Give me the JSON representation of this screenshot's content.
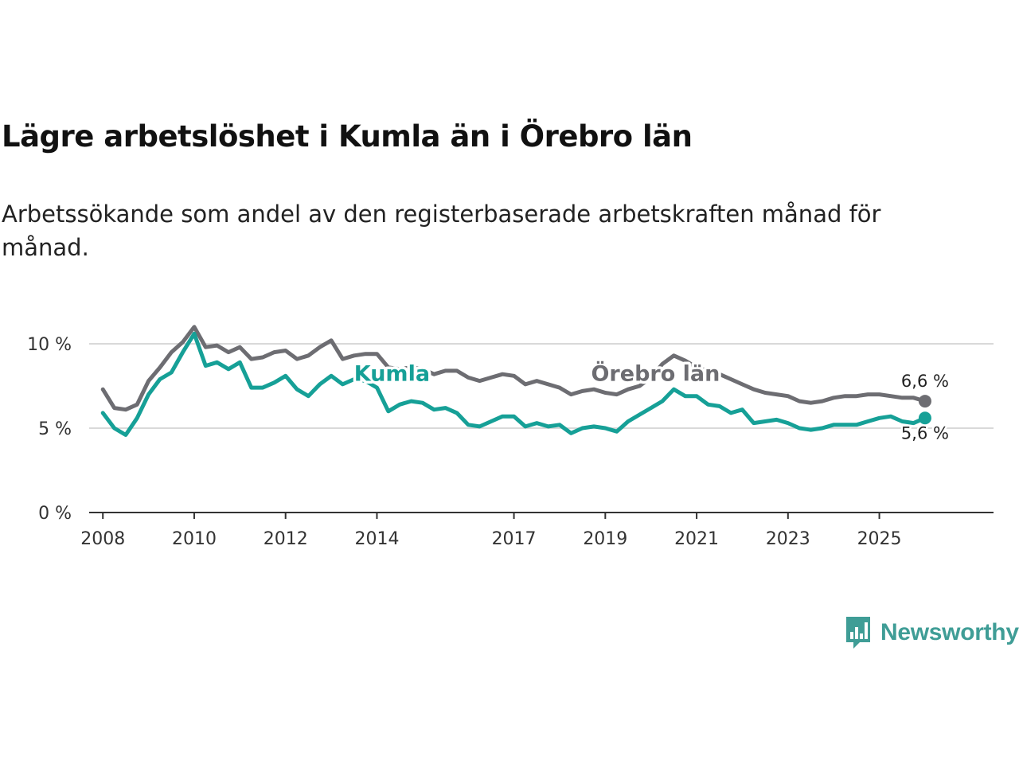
{
  "header": {
    "title": "Lägre arbetslöshet i Kumla än i Örebro län",
    "subtitle": "Arbetssökande som andel av den registerbaserade arbetskraften månad för månad."
  },
  "brand": {
    "name": "Newsworthy",
    "color": "#3f9d96"
  },
  "chart_data": {
    "type": "line",
    "title": "Lägre arbetslöshet i Kumla än i Örebro län",
    "subtitle": "Arbetssökande som andel av den registerbaserade arbetskraften månad för månad.",
    "xlabel": "",
    "ylabel": "",
    "xlim": [
      2007.7,
      2027.5
    ],
    "ylim": [
      0,
      10
    ],
    "grid": true,
    "x_ticks": [
      2008,
      2010,
      2012,
      2014,
      2017,
      2019,
      2021,
      2023,
      2025
    ],
    "y_ticks": [
      0,
      5,
      10
    ],
    "y_tick_labels": [
      "0 %",
      "5 %",
      "10 %"
    ],
    "x": [
      2008.0,
      2008.25,
      2008.5,
      2008.75,
      2009.0,
      2009.25,
      2009.5,
      2009.75,
      2010.0,
      2010.25,
      2010.5,
      2010.75,
      2011.0,
      2011.25,
      2011.5,
      2011.75,
      2012.0,
      2012.25,
      2012.5,
      2012.75,
      2013.0,
      2013.25,
      2013.5,
      2013.75,
      2014.0,
      2014.25,
      2014.5,
      2014.75,
      2015.0,
      2015.25,
      2015.5,
      2015.75,
      2016.0,
      2016.25,
      2016.5,
      2016.75,
      2017.0,
      2017.25,
      2017.5,
      2017.75,
      2018.0,
      2018.25,
      2018.5,
      2018.75,
      2019.0,
      2019.25,
      2019.5,
      2019.75,
      2020.0,
      2020.25,
      2020.5,
      2020.75,
      2021.0,
      2021.25,
      2021.5,
      2021.75,
      2022.0,
      2022.25,
      2022.5,
      2022.75,
      2023.0,
      2023.25,
      2023.5,
      2023.75,
      2024.0,
      2024.25,
      2024.5,
      2024.75,
      2025.0,
      2025.25,
      2025.5,
      2025.75,
      2026.0
    ],
    "series": [
      {
        "name": "Örebro län",
        "color": "#6d6d72",
        "end_label": "6,6 %",
        "values": [
          7.3,
          6.2,
          6.1,
          6.4,
          7.8,
          8.6,
          9.5,
          10.1,
          11.0,
          9.8,
          9.9,
          9.5,
          9.8,
          9.1,
          9.2,
          9.5,
          9.6,
          9.1,
          9.3,
          9.8,
          10.2,
          9.1,
          9.3,
          9.4,
          9.4,
          8.6,
          8.5,
          8.6,
          8.5,
          8.2,
          8.4,
          8.4,
          8.0,
          7.8,
          8.0,
          8.2,
          8.1,
          7.6,
          7.8,
          7.6,
          7.4,
          7.0,
          7.2,
          7.3,
          7.1,
          7.0,
          7.3,
          7.5,
          8.0,
          8.8,
          9.3,
          9.0,
          8.6,
          8.4,
          8.2,
          7.9,
          7.6,
          7.3,
          7.1,
          7.0,
          6.9,
          6.6,
          6.5,
          6.6,
          6.8,
          6.9,
          6.9,
          7.0,
          7.0,
          6.9,
          6.8,
          6.8,
          6.6
        ]
      },
      {
        "name": "Kumla",
        "color": "#16a097",
        "end_label": "5,6 %",
        "values": [
          5.9,
          5.0,
          4.6,
          5.6,
          7.0,
          7.9,
          8.3,
          9.5,
          10.6,
          8.7,
          8.9,
          8.5,
          8.9,
          7.4,
          7.4,
          7.7,
          8.1,
          7.3,
          6.9,
          7.6,
          8.1,
          7.6,
          7.9,
          7.8,
          7.4,
          6.0,
          6.4,
          6.6,
          6.5,
          6.1,
          6.2,
          5.9,
          5.2,
          5.1,
          5.4,
          5.7,
          5.7,
          5.1,
          5.3,
          5.1,
          5.2,
          4.7,
          5.0,
          5.1,
          5.0,
          4.8,
          5.4,
          5.8,
          6.2,
          6.6,
          7.3,
          6.9,
          6.9,
          6.4,
          6.3,
          5.9,
          6.1,
          5.3,
          5.4,
          5.5,
          5.3,
          5.0,
          4.9,
          5.0,
          5.2,
          5.2,
          5.2,
          5.4,
          5.6,
          5.7,
          5.4,
          5.3,
          5.6
        ]
      }
    ]
  }
}
